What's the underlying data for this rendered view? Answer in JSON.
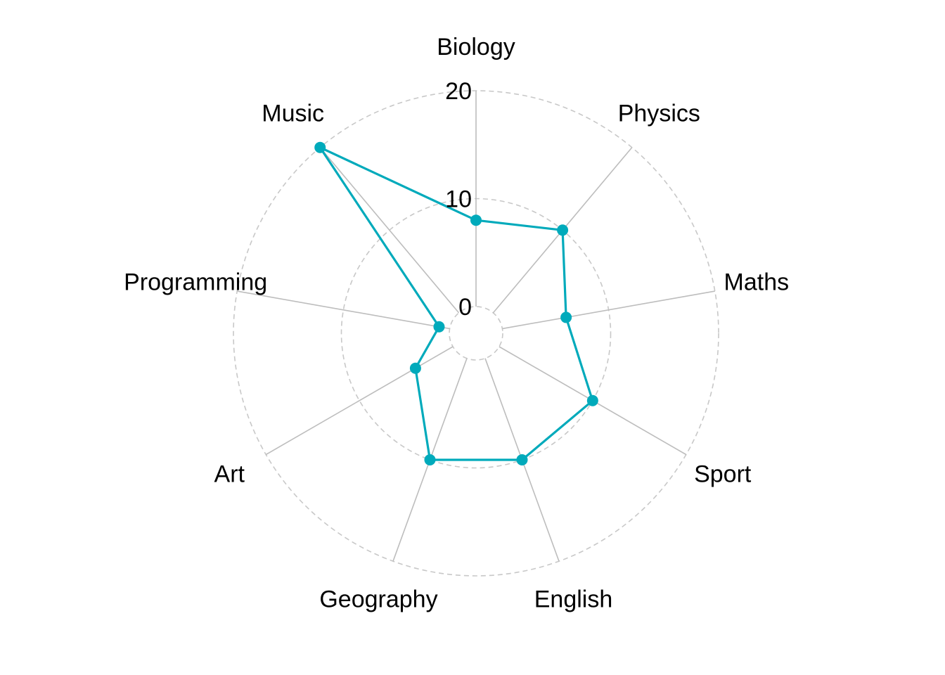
{
  "chart_data": {
    "type": "radar",
    "title": "",
    "categories": [
      "Biology",
      "Physics",
      "Maths",
      "Sport",
      "English",
      "Geography",
      "Art",
      "Programming",
      "Music"
    ],
    "series": [
      {
        "values": [
          8,
          10,
          6,
          10,
          10,
          10,
          4,
          1,
          20
        ],
        "color": "#00aabb"
      }
    ],
    "rlim": [
      0,
      20
    ],
    "rticks": [
      0,
      10,
      20
    ],
    "rtick_labels": [
      "0",
      "10",
      "20"
    ],
    "grid": true,
    "grid_style": "dashed",
    "colors": {
      "spoke": "#bdbdbd",
      "grid": "#c8c8c8",
      "series": "#00aabb"
    }
  }
}
